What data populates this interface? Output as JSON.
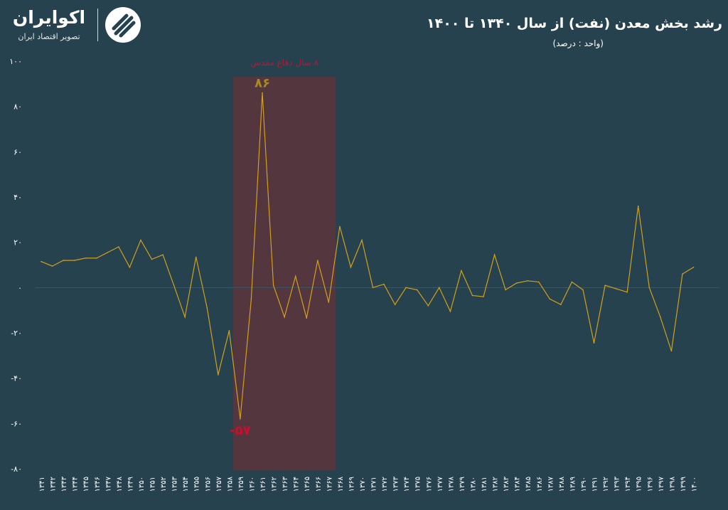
{
  "brand": {
    "name": "اکوایران",
    "tagline": "تصویر اقتصاد ایران"
  },
  "title": "رشد بخش معدن (نفت) از سال ۱۳۴۰ تا ۱۴۰۰",
  "unit": "(واحد : درصد)",
  "colors": {
    "background": "#26424f",
    "line": "#d4a017",
    "war_band": "#54363f",
    "war_label": "#c8102e",
    "max_label": "#a58b1f",
    "min_label": "#c8102e"
  },
  "chart_data": {
    "type": "line",
    "ylim": [
      -80,
      100
    ],
    "yticks": [
      "۱۰۰",
      "۸۰",
      "۶۰",
      "۴۰",
      "۲۰",
      "۰",
      "-۲۰",
      "-۴۰",
      "-۶۰",
      "-۸۰"
    ],
    "ytick_values": [
      100,
      80,
      60,
      40,
      20,
      0,
      -20,
      -40,
      -60,
      -80
    ],
    "grid": false,
    "legend": "none",
    "x": [
      "۱۳۴۱",
      "۱۳۴۲",
      "۱۳۴۳",
      "۱۳۴۴",
      "۱۳۴۵",
      "۱۳۴۶",
      "۱۳۴۷",
      "۱۳۴۸",
      "۱۳۴۹",
      "۱۳۵۰",
      "۱۳۵۱",
      "۱۳۵۲",
      "۱۳۵۳",
      "۱۳۵۴",
      "۱۳۵۵",
      "۱۳۵۶",
      "۱۳۵۷",
      "۱۳۵۸",
      "۱۳۵۹",
      "۱۳۶۰",
      "۱۳۶۱",
      "۱۳۶۲",
      "۱۳۶۳",
      "۱۳۶۴",
      "۱۳۶۵",
      "۱۳۶۶",
      "۱۳۶۷",
      "۱۳۶۸",
      "۱۳۶۹",
      "۱۳۷۰",
      "۱۳۷۱",
      "۱۳۷۲",
      "۱۳۷۳",
      "۱۳۷۴",
      "۱۳۷۵",
      "۱۳۷۶",
      "۱۳۷۷",
      "۱۳۷۸",
      "۱۳۷۹",
      "۱۳۸۰",
      "۱۳۸۱",
      "۱۳۸۲",
      "۱۳۸۳",
      "۱۳۸۴",
      "۱۳۸۵",
      "۱۳۸۶",
      "۱۳۸۷",
      "۱۳۸۸",
      "۱۳۸۹",
      "۱۳۹۰",
      "۱۳۹۱",
      "۱۳۹۲",
      "۱۳۹۳",
      "۱۳۹۴",
      "۱۳۹۵",
      "۱۳۹۶",
      "۱۳۹۷",
      "۱۳۹۸",
      "۱۳۹۹",
      "۱۴۰۰"
    ],
    "series": [
      {
        "values": [
          11.5,
          9.5,
          12,
          12,
          13,
          13,
          15.5,
          18,
          9,
          21,
          12.5,
          14.5,
          1,
          -13,
          13.5,
          -9,
          -38.5,
          -19,
          -58,
          -5,
          86,
          1,
          -13,
          5,
          -13.5,
          12,
          -6.5,
          27,
          9,
          21,
          0,
          1.5,
          -7.5,
          0,
          -1,
          -8,
          0,
          -10.5,
          7.5,
          -3.5,
          -4,
          14.5,
          -1,
          2,
          3,
          2.5,
          -5,
          -7.5,
          2.5,
          -1,
          -24.5,
          1,
          -0.5,
          -2,
          36,
          0,
          -13,
          -28,
          6,
          9
        ]
      }
    ],
    "annotations": {
      "war_band": {
        "from": "۱۳۵۹",
        "to": "۱۳۶۷",
        "label": "۸ سال دفاع مقدس"
      },
      "max_label": "۸۶",
      "min_label": "-۵۷"
    }
  }
}
